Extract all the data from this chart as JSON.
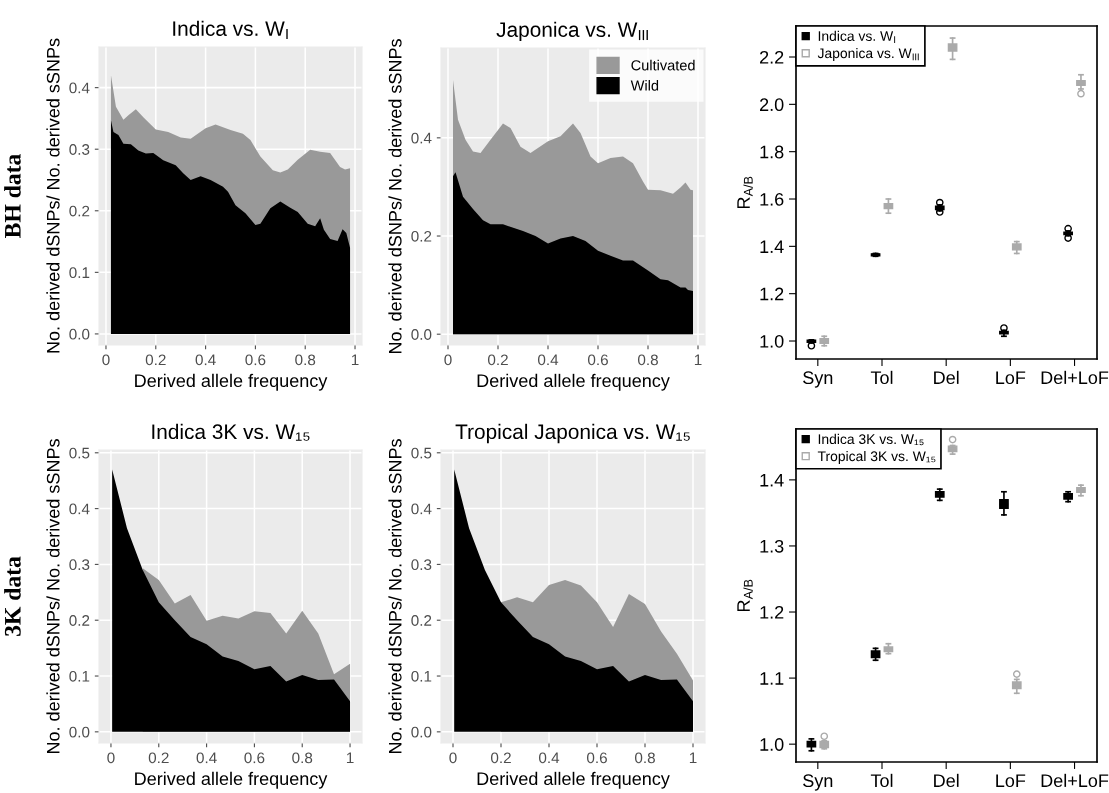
{
  "chart_data": [
    {
      "type": "area",
      "title": "Indica vs. W$_{I}$",
      "xlabel": "Derived allele frequency",
      "ylabel": "No. derived dSNPs/ No. derived sSNPs",
      "annotations": [
        "BH data"
      ],
      "grid": true,
      "xlim": [
        -0.028,
        1.028
      ],
      "ylim": [
        -0.018,
        0.466
      ],
      "xticks": [
        0,
        0.2,
        0.4,
        0.6,
        0.8,
        1
      ],
      "yticks": [
        {
          "value": 0,
          "label": "0.0"
        },
        0.1,
        0.2,
        0.3,
        0.4
      ],
      "series": [
        {
          "color": "#999999",
          "x": [
            0.02,
            0.04,
            0.07,
            0.09,
            0.12,
            0.15,
            0.2,
            0.25,
            0.3,
            0.34,
            0.4,
            0.44,
            0.5,
            0.55,
            0.58,
            0.62,
            0.67,
            0.7,
            0.73,
            0.77,
            0.82,
            0.86,
            0.9,
            0.94,
            0.96,
            0.98
          ],
          "values": [
            0.42,
            0.369,
            0.348,
            0.355,
            0.365,
            0.352,
            0.332,
            0.328,
            0.319,
            0.317,
            0.334,
            0.34,
            0.331,
            0.325,
            0.315,
            0.288,
            0.266,
            0.262,
            0.267,
            0.283,
            0.299,
            0.296,
            0.294,
            0.271,
            0.267,
            0.269
          ]
        },
        {
          "color": "#000000",
          "x": [
            0.02,
            0.03,
            0.05,
            0.07,
            0.1,
            0.13,
            0.16,
            0.19,
            0.23,
            0.28,
            0.31,
            0.34,
            0.38,
            0.42,
            0.47,
            0.49,
            0.52,
            0.56,
            0.6,
            0.62,
            0.66,
            0.7,
            0.74,
            0.77,
            0.81,
            0.84,
            0.86,
            0.875,
            0.9,
            0.93,
            0.95,
            0.965,
            0.98
          ],
          "values": [
            0.347,
            0.328,
            0.323,
            0.309,
            0.308,
            0.298,
            0.293,
            0.294,
            0.282,
            0.274,
            0.261,
            0.25,
            0.256,
            0.25,
            0.239,
            0.231,
            0.209,
            0.196,
            0.177,
            0.179,
            0.204,
            0.215,
            0.205,
            0.198,
            0.179,
            0.175,
            0.188,
            0.169,
            0.154,
            0.151,
            0.17,
            0.164,
            0.14
          ]
        }
      ]
    },
    {
      "type": "area",
      "title": "Japonica vs. W$_{III}$",
      "xlabel": "Derived allele frequency",
      "ylabel": "No. derived dSNPs/ No. derived sSNPs",
      "grid": true,
      "legend": "top right",
      "xlim": [
        -0.028,
        1.028
      ],
      "ylim": [
        -0.022,
        0.583
      ],
      "xticks": [
        0,
        0.2,
        0.4,
        0.6,
        0.8,
        1
      ],
      "yticks": [
        {
          "value": 0,
          "label": "0.0"
        },
        0.2,
        0.4
      ],
      "series": [
        {
          "name": "Cultivated",
          "color": "#999999",
          "x": [
            0.02,
            0.04,
            0.07,
            0.1,
            0.13,
            0.17,
            0.22,
            0.25,
            0.29,
            0.33,
            0.4,
            0.45,
            0.5,
            0.53,
            0.57,
            0.6,
            0.65,
            0.7,
            0.74,
            0.78,
            0.8,
            0.85,
            0.9,
            0.93,
            0.95,
            0.97,
            0.98
          ],
          "values": [
            0.518,
            0.437,
            0.396,
            0.372,
            0.369,
            0.396,
            0.429,
            0.42,
            0.382,
            0.369,
            0.393,
            0.403,
            0.429,
            0.41,
            0.362,
            0.348,
            0.359,
            0.362,
            0.348,
            0.311,
            0.294,
            0.293,
            0.286,
            0.299,
            0.309,
            0.294,
            0.293
          ]
        },
        {
          "name": "Wild",
          "color": "#000000",
          "x": [
            0.02,
            0.03,
            0.06,
            0.1,
            0.14,
            0.17,
            0.22,
            0.3,
            0.35,
            0.4,
            0.45,
            0.5,
            0.55,
            0.6,
            0.65,
            0.7,
            0.74,
            0.8,
            0.85,
            0.88,
            0.93,
            0.95,
            0.96,
            0.98
          ],
          "values": [
            0.322,
            0.33,
            0.28,
            0.255,
            0.232,
            0.224,
            0.224,
            0.21,
            0.2,
            0.185,
            0.195,
            0.2,
            0.19,
            0.17,
            0.16,
            0.15,
            0.15,
            0.13,
            0.112,
            0.11,
            0.095,
            0.095,
            0.09,
            0.088
          ]
        }
      ]
    },
    {
      "type": "box",
      "ylabel": "R$_{A/B}$",
      "legend": "top left",
      "marker": "square",
      "categories": [
        "Syn",
        "Tol",
        "Del",
        "LoF",
        "Del+LoF"
      ],
      "ylim": [
        0.924,
        2.331
      ],
      "yticks": [
        {
          "value": 1,
          "label": "1.0"
        },
        1.2,
        1.4,
        1.6,
        1.8,
        {
          "value": 2,
          "label": "2.0"
        },
        2.2
      ],
      "series": [
        {
          "name": "Indica vs. W$_{I}$",
          "color": "#000000",
          "boxes": [
            {
              "low": 0.992,
              "q1": 0.995,
              "median": 1.0,
              "q3": 1.003,
              "high": 1.005,
              "outliers": [
                0.98
              ]
            },
            {
              "low": 1.358,
              "q1": 1.36,
              "median": 1.365,
              "q3": 1.368,
              "high": 1.37
            },
            {
              "low": 1.55,
              "q1": 1.555,
              "median": 1.565,
              "q3": 1.57,
              "high": 1.575,
              "outliers": [
                1.545,
                1.585
              ]
            },
            {
              "low": 1.02,
              "q1": 1.03,
              "median": 1.035,
              "q3": 1.04,
              "high": 1.045,
              "outliers": [
                1.055
              ]
            },
            {
              "low": 1.445,
              "q1": 1.45,
              "median": 1.455,
              "q3": 1.46,
              "high": 1.465,
              "outliers": [
                1.435,
                1.475
              ]
            }
          ]
        },
        {
          "name": "Japonica vs. W$_{III}$",
          "color": "#aaaaaa",
          "boxes": [
            {
              "low": 0.98,
              "q1": 0.99,
              "median": 1.0,
              "q3": 1.01,
              "high": 1.02
            },
            {
              "low": 1.54,
              "q1": 1.56,
              "median": 1.57,
              "q3": 1.58,
              "high": 1.6
            },
            {
              "low": 2.19,
              "q1": 2.225,
              "median": 2.24,
              "q3": 2.255,
              "high": 2.28
            },
            {
              "low": 1.37,
              "q1": 1.385,
              "median": 1.395,
              "q3": 1.41,
              "high": 1.42
            },
            {
              "low": 2.065,
              "q1": 2.08,
              "median": 2.09,
              "q3": 2.1,
              "high": 2.125,
              "outliers": [
                2.045
              ]
            }
          ]
        }
      ]
    },
    {
      "type": "area",
      "title": "Indica 3K vs. W₁₅",
      "xlabel": "Derived allele frequency",
      "ylabel": "No. derived dSNPs/ No. derived sSNPs",
      "annotations": [
        "3K data"
      ],
      "grid": true,
      "xlim": [
        -0.05,
        1.05
      ],
      "ylim": [
        -0.02,
        0.505
      ],
      "xticks": [
        0,
        0.2,
        0.4,
        0.6,
        0.8,
        1
      ],
      "yticks": [
        {
          "value": 0,
          "label": "0.0"
        },
        0.1,
        0.2,
        0.3,
        0.4,
        0.5
      ],
      "series": [
        {
          "color": "#999999",
          "x": [
            0.133,
            0.2,
            0.267,
            0.333,
            0.4,
            0.467,
            0.533,
            0.6,
            0.667,
            0.733,
            0.8,
            0.867,
            0.933,
            1
          ],
          "values": [
            0.293,
            0.272,
            0.23,
            0.245,
            0.199,
            0.208,
            0.203,
            0.216,
            0.213,
            0.176,
            0.217,
            0.176,
            0.103,
            0.122
          ]
        },
        {
          "color": "#000000",
          "x": [
            0.005,
            0.067,
            0.133,
            0.2,
            0.267,
            0.333,
            0.4,
            0.467,
            0.533,
            0.6,
            0.667,
            0.733,
            0.8,
            0.867,
            0.933,
            1
          ],
          "values": [
            0.47,
            0.365,
            0.29,
            0.232,
            0.2,
            0.17,
            0.157,
            0.135,
            0.127,
            0.112,
            0.118,
            0.09,
            0.102,
            0.093,
            0.094,
            0.055
          ]
        }
      ]
    },
    {
      "type": "area",
      "title": "Tropical Japonica vs. W₁₅",
      "xlabel": "Derived allele frequency",
      "ylabel": "No. derived dSNPs/ No. derived sSNPs",
      "grid": true,
      "xlim": [
        -0.05,
        1.05
      ],
      "ylim": [
        -0.02,
        0.505
      ],
      "xticks": [
        0,
        0.2,
        0.4,
        0.6,
        0.8,
        1
      ],
      "yticks": [
        {
          "value": 0,
          "label": "0.0"
        },
        0.1,
        0.2,
        0.3,
        0.4,
        0.5
      ],
      "series": [
        {
          "color": "#999999",
          "x": [
            0.2,
            0.267,
            0.333,
            0.4,
            0.467,
            0.533,
            0.6,
            0.667,
            0.733,
            0.8,
            0.867,
            0.933,
            1
          ],
          "values": [
            0.232,
            0.241,
            0.232,
            0.263,
            0.272,
            0.262,
            0.232,
            0.188,
            0.247,
            0.229,
            0.18,
            0.14,
            0.092
          ]
        },
        {
          "color": "#000000",
          "x": [
            0.005,
            0.067,
            0.133,
            0.2,
            0.267,
            0.333,
            0.4,
            0.467,
            0.533,
            0.6,
            0.667,
            0.733,
            0.8,
            0.867,
            0.933,
            1
          ],
          "values": [
            0.47,
            0.365,
            0.29,
            0.232,
            0.2,
            0.17,
            0.157,
            0.135,
            0.127,
            0.112,
            0.118,
            0.09,
            0.102,
            0.093,
            0.094,
            0.055
          ]
        }
      ]
    },
    {
      "type": "box",
      "ylabel": "R$_{A/B}$",
      "legend": "top left",
      "marker": "square",
      "categories": [
        "Syn",
        "Tol",
        "Del",
        "LoF",
        "Del+LoF"
      ],
      "ylim": [
        0.973,
        1.477
      ],
      "yticks": [
        {
          "value": 1,
          "label": "1.0"
        },
        1.1,
        1.2,
        1.3,
        1.4
      ],
      "series": [
        {
          "name": "Indica 3K vs. W₁₅",
          "color": "#000000",
          "boxes": [
            {
              "low": 0.99,
              "q1": 0.996,
              "median": 1.0,
              "q3": 1.004,
              "high": 1.008
            },
            {
              "low": 1.127,
              "q1": 1.131,
              "median": 1.136,
              "q3": 1.141,
              "high": 1.145
            },
            {
              "low": 1.369,
              "q1": 1.374,
              "median": 1.378,
              "q3": 1.382,
              "high": 1.386
            },
            {
              "low": 1.347,
              "q1": 1.357,
              "median": 1.363,
              "q3": 1.37,
              "high": 1.382
            },
            {
              "low": 1.367,
              "q1": 1.371,
              "median": 1.375,
              "q3": 1.379,
              "high": 1.382
            }
          ]
        },
        {
          "name": "Tropical 3K vs. W₁₅",
          "color": "#aaaaaa",
          "boxes": [
            {
              "low": 0.993,
              "q1": 0.995,
              "median": 1.0,
              "q3": 1.004,
              "high": 1.005,
              "outliers": [
                1.012
              ]
            },
            {
              "low": 1.137,
              "q1": 1.14,
              "median": 1.143,
              "q3": 1.147,
              "high": 1.152
            },
            {
              "low": 1.439,
              "q1": 1.443,
              "median": 1.447,
              "q3": 1.451,
              "high": 1.452,
              "outliers": [
                1.461
              ]
            },
            {
              "low": 1.077,
              "q1": 1.084,
              "median": 1.089,
              "q3": 1.094,
              "high": 1.098,
              "outliers": [
                1.106
              ]
            },
            {
              "low": 1.376,
              "q1": 1.381,
              "median": 1.384,
              "q3": 1.388,
              "high": 1.392
            }
          ]
        }
      ]
    }
  ]
}
